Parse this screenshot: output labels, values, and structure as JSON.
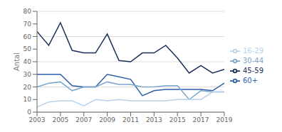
{
  "chart_data": {
    "type": "line",
    "ylabel": "Antal",
    "x": [
      2003,
      2004,
      2005,
      2006,
      2007,
      2008,
      2009,
      2010,
      2011,
      2012,
      2013,
      2014,
      2015,
      2016,
      2017,
      2018,
      2019
    ],
    "xlim": [
      2003,
      2019
    ],
    "xticks": [
      2003,
      2005,
      2007,
      2009,
      2011,
      2013,
      2015,
      2017,
      2019
    ],
    "ylim": [
      0,
      80
    ],
    "yticks": [
      0,
      10,
      20,
      30,
      40,
      50,
      60,
      70,
      80
    ],
    "grid": true,
    "legend": "right",
    "series": [
      {
        "name": "45-59",
        "color": "#1a2f5a",
        "values": [
          64,
          53,
          71,
          49,
          47,
          47,
          62,
          41,
          40,
          47,
          47,
          53,
          43,
          31,
          37,
          31,
          34
        ]
      },
      {
        "name": "60+",
        "color": "#2e5ea8",
        "values": [
          30,
          30,
          30,
          21,
          20,
          20,
          30,
          28,
          26,
          13,
          17,
          18,
          18,
          18,
          18,
          17,
          23
        ]
      },
      {
        "name": "30-44",
        "color": "#7da6cd",
        "values": [
          20,
          23,
          24,
          17,
          20,
          20,
          24,
          22,
          22,
          20,
          20,
          21,
          21,
          10,
          17,
          16,
          16
        ]
      },
      {
        "name": "16-29",
        "color": "#b8d4ec",
        "values": [
          4,
          8,
          9,
          9,
          5,
          10,
          9,
          10,
          9,
          9,
          9,
          9,
          10,
          10,
          10,
          16,
          16
        ]
      }
    ]
  }
}
